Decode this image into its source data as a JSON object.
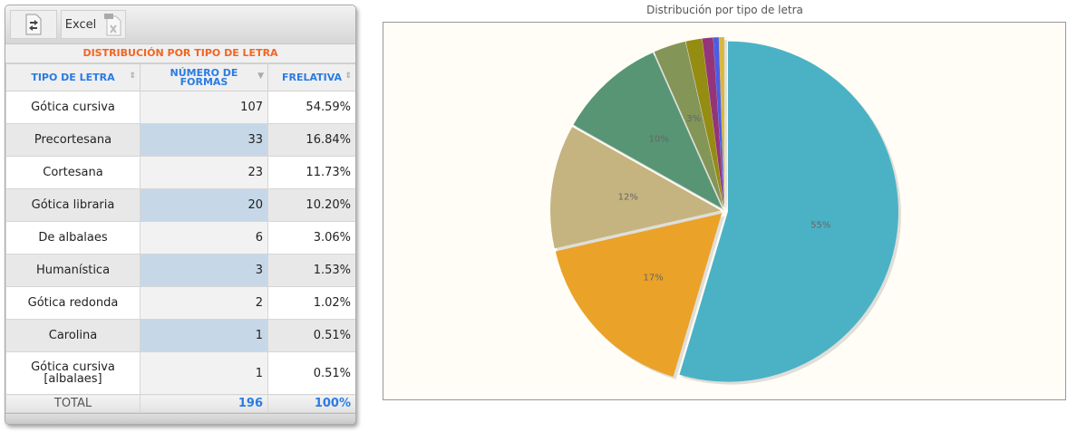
{
  "toolbar": {
    "export_icon": "export-arrows-icon",
    "excel_label": "Excel",
    "excel_icon": "excel-file-icon"
  },
  "table": {
    "caption": "DISTRIBUCIÓN POR TIPO DE LETRA",
    "headers": [
      {
        "label": "TIPO DE LETRA",
        "sort": "both"
      },
      {
        "label": "NÚMERO DE FORMAS",
        "sort": "desc"
      },
      {
        "label": "FRELATIVA",
        "sort": "both"
      }
    ],
    "rows": [
      {
        "tipo": "Gótica cursiva",
        "n": "107",
        "f": "54.59%"
      },
      {
        "tipo": "Precortesana",
        "n": "33",
        "f": "16.84%"
      },
      {
        "tipo": "Cortesana",
        "n": "23",
        "f": "11.73%"
      },
      {
        "tipo": "Gótica libraria",
        "n": "20",
        "f": "10.20%"
      },
      {
        "tipo": "De albalaes",
        "n": "6",
        "f": "3.06%"
      },
      {
        "tipo": "Humanística",
        "n": "3",
        "f": "1.53%"
      },
      {
        "tipo": "Gótica redonda",
        "n": "2",
        "f": "1.02%"
      },
      {
        "tipo": "Carolina",
        "n": "1",
        "f": "0.51%"
      },
      {
        "tipo": "Gótica cursiva [albalaes]",
        "n": "1",
        "f": "0.51%"
      }
    ],
    "total": {
      "label": "TOTAL",
      "n": "196",
      "f": "100%"
    }
  },
  "chart_data": {
    "type": "pie",
    "title": "Distribución por tipo de letra",
    "categories": [
      "Gótica cursiva",
      "Precortesana",
      "Cortesana",
      "Gótica libraria",
      "De albalaes",
      "Humanística",
      "Gótica redonda",
      "Carolina",
      "Gótica cursiva [albalaes]"
    ],
    "values": [
      107,
      33,
      23,
      20,
      6,
      3,
      2,
      1,
      1
    ],
    "labels": [
      "55%",
      "17%",
      "12%",
      "10%",
      "3%",
      "",
      "",
      "",
      ""
    ],
    "colors": [
      "#4bb2c5",
      "#eaa228",
      "#c5b47f",
      "#579575",
      "#839557",
      "#958c12",
      "#953579",
      "#4b5de4",
      "#d8b83f"
    ],
    "background": "#fffdf6"
  }
}
